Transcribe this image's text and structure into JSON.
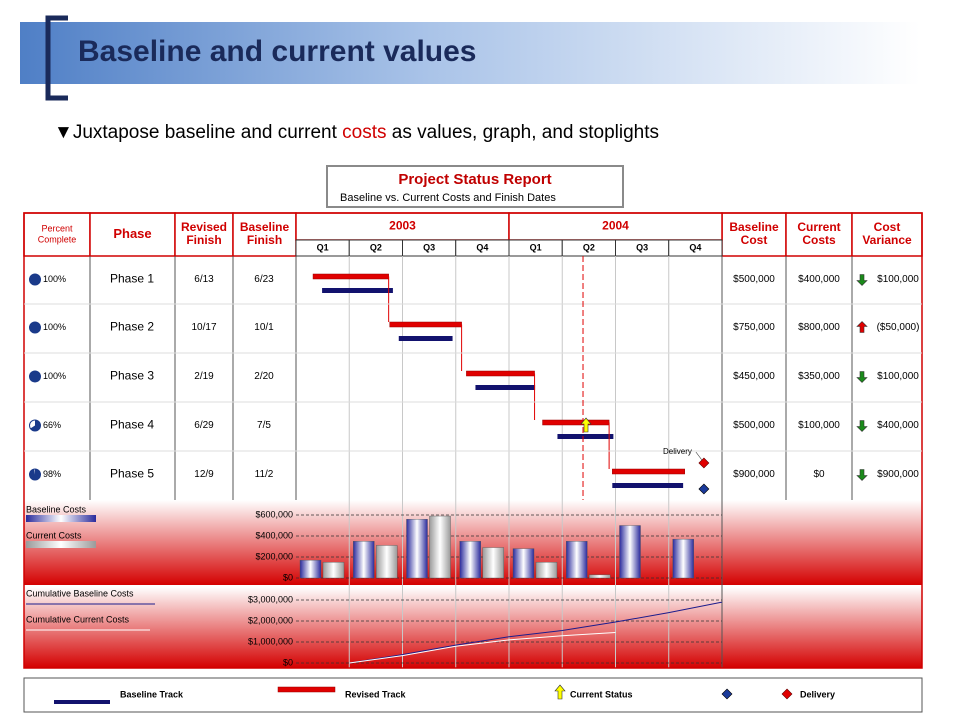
{
  "header": {
    "title": "Baseline and current values"
  },
  "bullet": {
    "marker": "▼",
    "parts": [
      "Juxtapose baseline and current ",
      "costs",
      " as values, graph, and stoplights"
    ]
  },
  "report": {
    "title": "Project Status Report",
    "subtitle": "Baseline vs. Current Costs and Finish Dates"
  },
  "table": {
    "headers": {
      "percent": [
        "Percent",
        "Complete"
      ],
      "phase": [
        "Phase"
      ],
      "revised_finish": [
        "Revised",
        "Finish"
      ],
      "baseline_finish": [
        "Baseline",
        "Finish"
      ],
      "baseline_cost": [
        "Baseline",
        "Cost"
      ],
      "current_costs": [
        "Current",
        "Costs"
      ],
      "cost_variance": [
        "Cost",
        "Variance"
      ]
    },
    "years": [
      "2003",
      "2004"
    ],
    "quarters": [
      "Q1",
      "Q2",
      "Q3",
      "Q4",
      "Q1",
      "Q2",
      "Q3",
      "Q4"
    ],
    "rows": [
      {
        "percent": {
          "value": 100,
          "label": "100%"
        },
        "phase": "Phase 1",
        "revised_finish": "6/13",
        "baseline_finish": "6/23",
        "baseline_cost": "$500,000",
        "current_costs": "$400,000",
        "cost_variance": "$100,000",
        "trend": "down",
        "revised_track": [
          0.32,
          1.74
        ],
        "baseline_track": [
          0.49,
          1.82
        ]
      },
      {
        "percent": {
          "value": 100,
          "label": "100%"
        },
        "phase": "Phase 2",
        "revised_finish": "10/17",
        "baseline_finish": "10/1",
        "baseline_cost": "$750,000",
        "current_costs": "$800,000",
        "cost_variance": "($50,000)",
        "trend": "up",
        "revised_track": [
          1.76,
          3.11
        ],
        "baseline_track": [
          1.93,
          2.94
        ]
      },
      {
        "percent": {
          "value": 100,
          "label": "100%"
        },
        "phase": "Phase 3",
        "revised_finish": "2/19",
        "baseline_finish": "2/20",
        "baseline_cost": "$450,000",
        "current_costs": "$350,000",
        "cost_variance": "$100,000",
        "trend": "down",
        "revised_track": [
          3.2,
          4.48
        ],
        "baseline_track": [
          3.37,
          4.49
        ]
      },
      {
        "percent": {
          "value": 66,
          "label": "66%"
        },
        "phase": "Phase 4",
        "revised_finish": "6/29",
        "baseline_finish": "7/5",
        "baseline_cost": "$500,000",
        "current_costs": "$100,000",
        "cost_variance": "$400,000",
        "trend": "down",
        "revised_track": [
          4.63,
          5.88
        ],
        "baseline_track": [
          4.91,
          5.96
        ]
      },
      {
        "percent": {
          "value": 98,
          "label": "98%"
        },
        "phase": "Phase 5",
        "revised_finish": "12/9",
        "baseline_finish": "11/2",
        "baseline_cost": "$900,000",
        "current_costs": "$0",
        "cost_variance": "$900,000",
        "trend": "down",
        "revised_track": [
          5.94,
          7.3
        ],
        "baseline_track": [
          5.94,
          7.27
        ]
      }
    ]
  },
  "current_status": 5.39,
  "delivery": {
    "label": "Delivery",
    "at": 7.66
  },
  "costs_chart": {
    "type": "bar",
    "series": [
      {
        "name": "Baseline Costs",
        "color": "#2a2a9c",
        "values": [
          170000,
          350000,
          560000,
          350000,
          280000,
          350000,
          500000,
          370000
        ]
      },
      {
        "name": "Current Costs",
        "color": "#9a9a9a",
        "values": [
          150000,
          310000,
          590000,
          290000,
          150000,
          30000,
          null,
          null
        ]
      }
    ],
    "ylim": [
      0,
      600000
    ],
    "yticks": [
      {
        "value": 0,
        "label": "$0"
      },
      {
        "value": 200000,
        "label": "$200,000"
      },
      {
        "value": 400000,
        "label": "$400,000"
      },
      {
        "value": 600000,
        "label": "$600,000"
      }
    ]
  },
  "cumulative_chart": {
    "type": "line",
    "x": [
      1,
      2,
      3,
      4,
      5,
      6,
      7,
      8
    ],
    "series": [
      {
        "name": "Cumulative Baseline Costs",
        "color": "#1c1c8c",
        "values": [
          0,
          400000,
          850000,
          1250000,
          1550000,
          1950000,
          2400000,
          2900000
        ]
      },
      {
        "name": "Cumulative Current Costs",
        "color": "#ffffff",
        "values": [
          0,
          350000,
          800000,
          1100000,
          1300000,
          1450000,
          null,
          null
        ]
      }
    ],
    "ylim": [
      0,
      3000000
    ],
    "yticks": [
      {
        "value": 0,
        "label": "$0"
      },
      {
        "value": 1000000,
        "label": "$1,000,000"
      },
      {
        "value": 2000000,
        "label": "$2,000,000"
      },
      {
        "value": 3000000,
        "label": "$3,000,000"
      }
    ]
  },
  "legend": [
    "Baseline Track",
    "Revised Track",
    "Current Status",
    "Delivery"
  ]
}
